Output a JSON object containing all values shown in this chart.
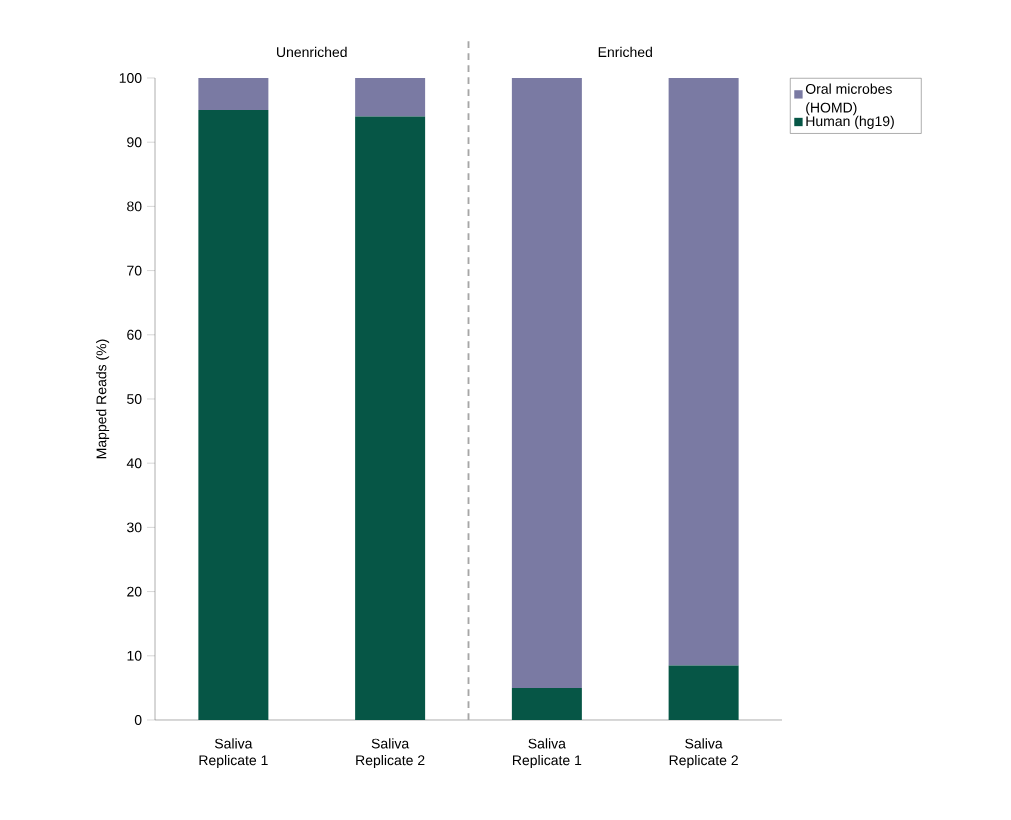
{
  "chart_data": {
    "type": "bar",
    "stacked": true,
    "ylabel": "Mapped Reads (%)",
    "categories": [
      "Saliva Replicate 1",
      "Saliva Replicate 2",
      "Saliva Replicate 1",
      "Saliva Replicate 2"
    ],
    "series": [
      {
        "name": "Human (hg19)",
        "color": "#065646",
        "values": [
          95,
          94,
          5,
          8.5
        ]
      },
      {
        "name": "Oral microbes (HOMD)",
        "color": "#7a7aa3",
        "values": [
          5,
          6,
          95,
          91.5
        ]
      }
    ],
    "ylim": [
      0,
      100
    ],
    "yticks": [
      0,
      10,
      20,
      30,
      40,
      50,
      60,
      70,
      80,
      90,
      100
    ],
    "annotations": [
      "Unenriched",
      "Enriched"
    ],
    "legend": "top right",
    "grid": false
  }
}
